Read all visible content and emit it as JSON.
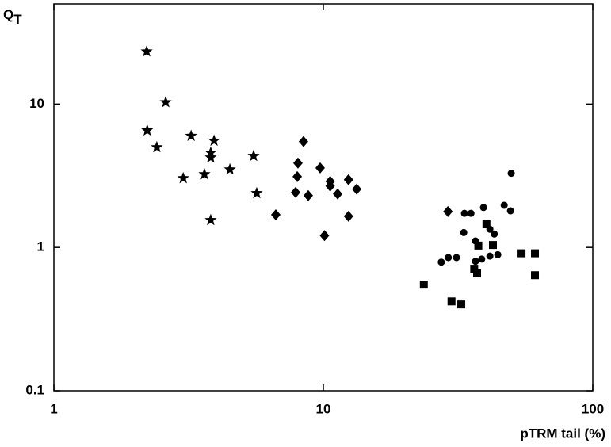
{
  "chart_data": {
    "type": "scatter",
    "xlabel": "pTRM tail (%)",
    "ylabel": {
      "main": "Q",
      "sub": "T"
    },
    "xscale": "log",
    "yscale": "log",
    "xlim": [
      1,
      100
    ],
    "ylim": [
      0.1,
      50
    ],
    "xticks": [
      1,
      10,
      100
    ],
    "yticks": [
      0.1,
      1,
      10
    ],
    "grid": false,
    "series": [
      {
        "marker": "star",
        "color": "#000000",
        "x": [
          2.21,
          2.22,
          2.6,
          2.41,
          3.23,
          3.02,
          3.62,
          3.82,
          3.82,
          3.93,
          3.82,
          4.5,
          5.51,
          5.66
        ],
        "y": [
          23.3,
          6.55,
          10.3,
          5.0,
          6.0,
          3.04,
          3.24,
          4.58,
          4.24,
          5.55,
          1.55,
          3.5,
          4.35,
          2.39
        ]
      },
      {
        "marker": "diamond",
        "color": "#000000",
        "x": [
          8.44,
          8.05,
          8.0,
          7.89,
          8.79,
          9.73,
          10.6,
          10.6,
          11.3,
          12.4,
          13.3,
          12.4,
          6.66,
          10.1,
          29.0
        ],
        "y": [
          5.48,
          3.88,
          3.12,
          2.42,
          2.3,
          3.59,
          2.89,
          2.68,
          2.36,
          2.97,
          2.55,
          1.65,
          1.69,
          1.21,
          1.78
        ]
      },
      {
        "marker": "circle",
        "color": "#000000",
        "x": [
          49.8,
          46.9,
          49.5,
          39.3,
          33.4,
          35.3,
          33.2,
          36.7,
          41.5,
          43.1,
          44.4,
          41.5,
          38.7,
          36.7,
          29.1,
          31.2,
          27.4
        ],
        "y": [
          3.29,
          1.97,
          1.8,
          1.9,
          1.73,
          1.73,
          1.27,
          1.11,
          1.34,
          1.24,
          0.89,
          0.87,
          0.83,
          0.8,
          0.85,
          0.85,
          0.79
        ]
      },
      {
        "marker": "square",
        "color": "#000000",
        "x": [
          23.6,
          29.9,
          32.5,
          37.2,
          37.6,
          42.6,
          40.3,
          54.4,
          61.0,
          61.0,
          36.3
        ],
        "y": [
          0.55,
          0.42,
          0.4,
          0.66,
          1.03,
          1.04,
          1.45,
          0.91,
          0.91,
          0.64,
          0.71
        ]
      }
    ]
  }
}
